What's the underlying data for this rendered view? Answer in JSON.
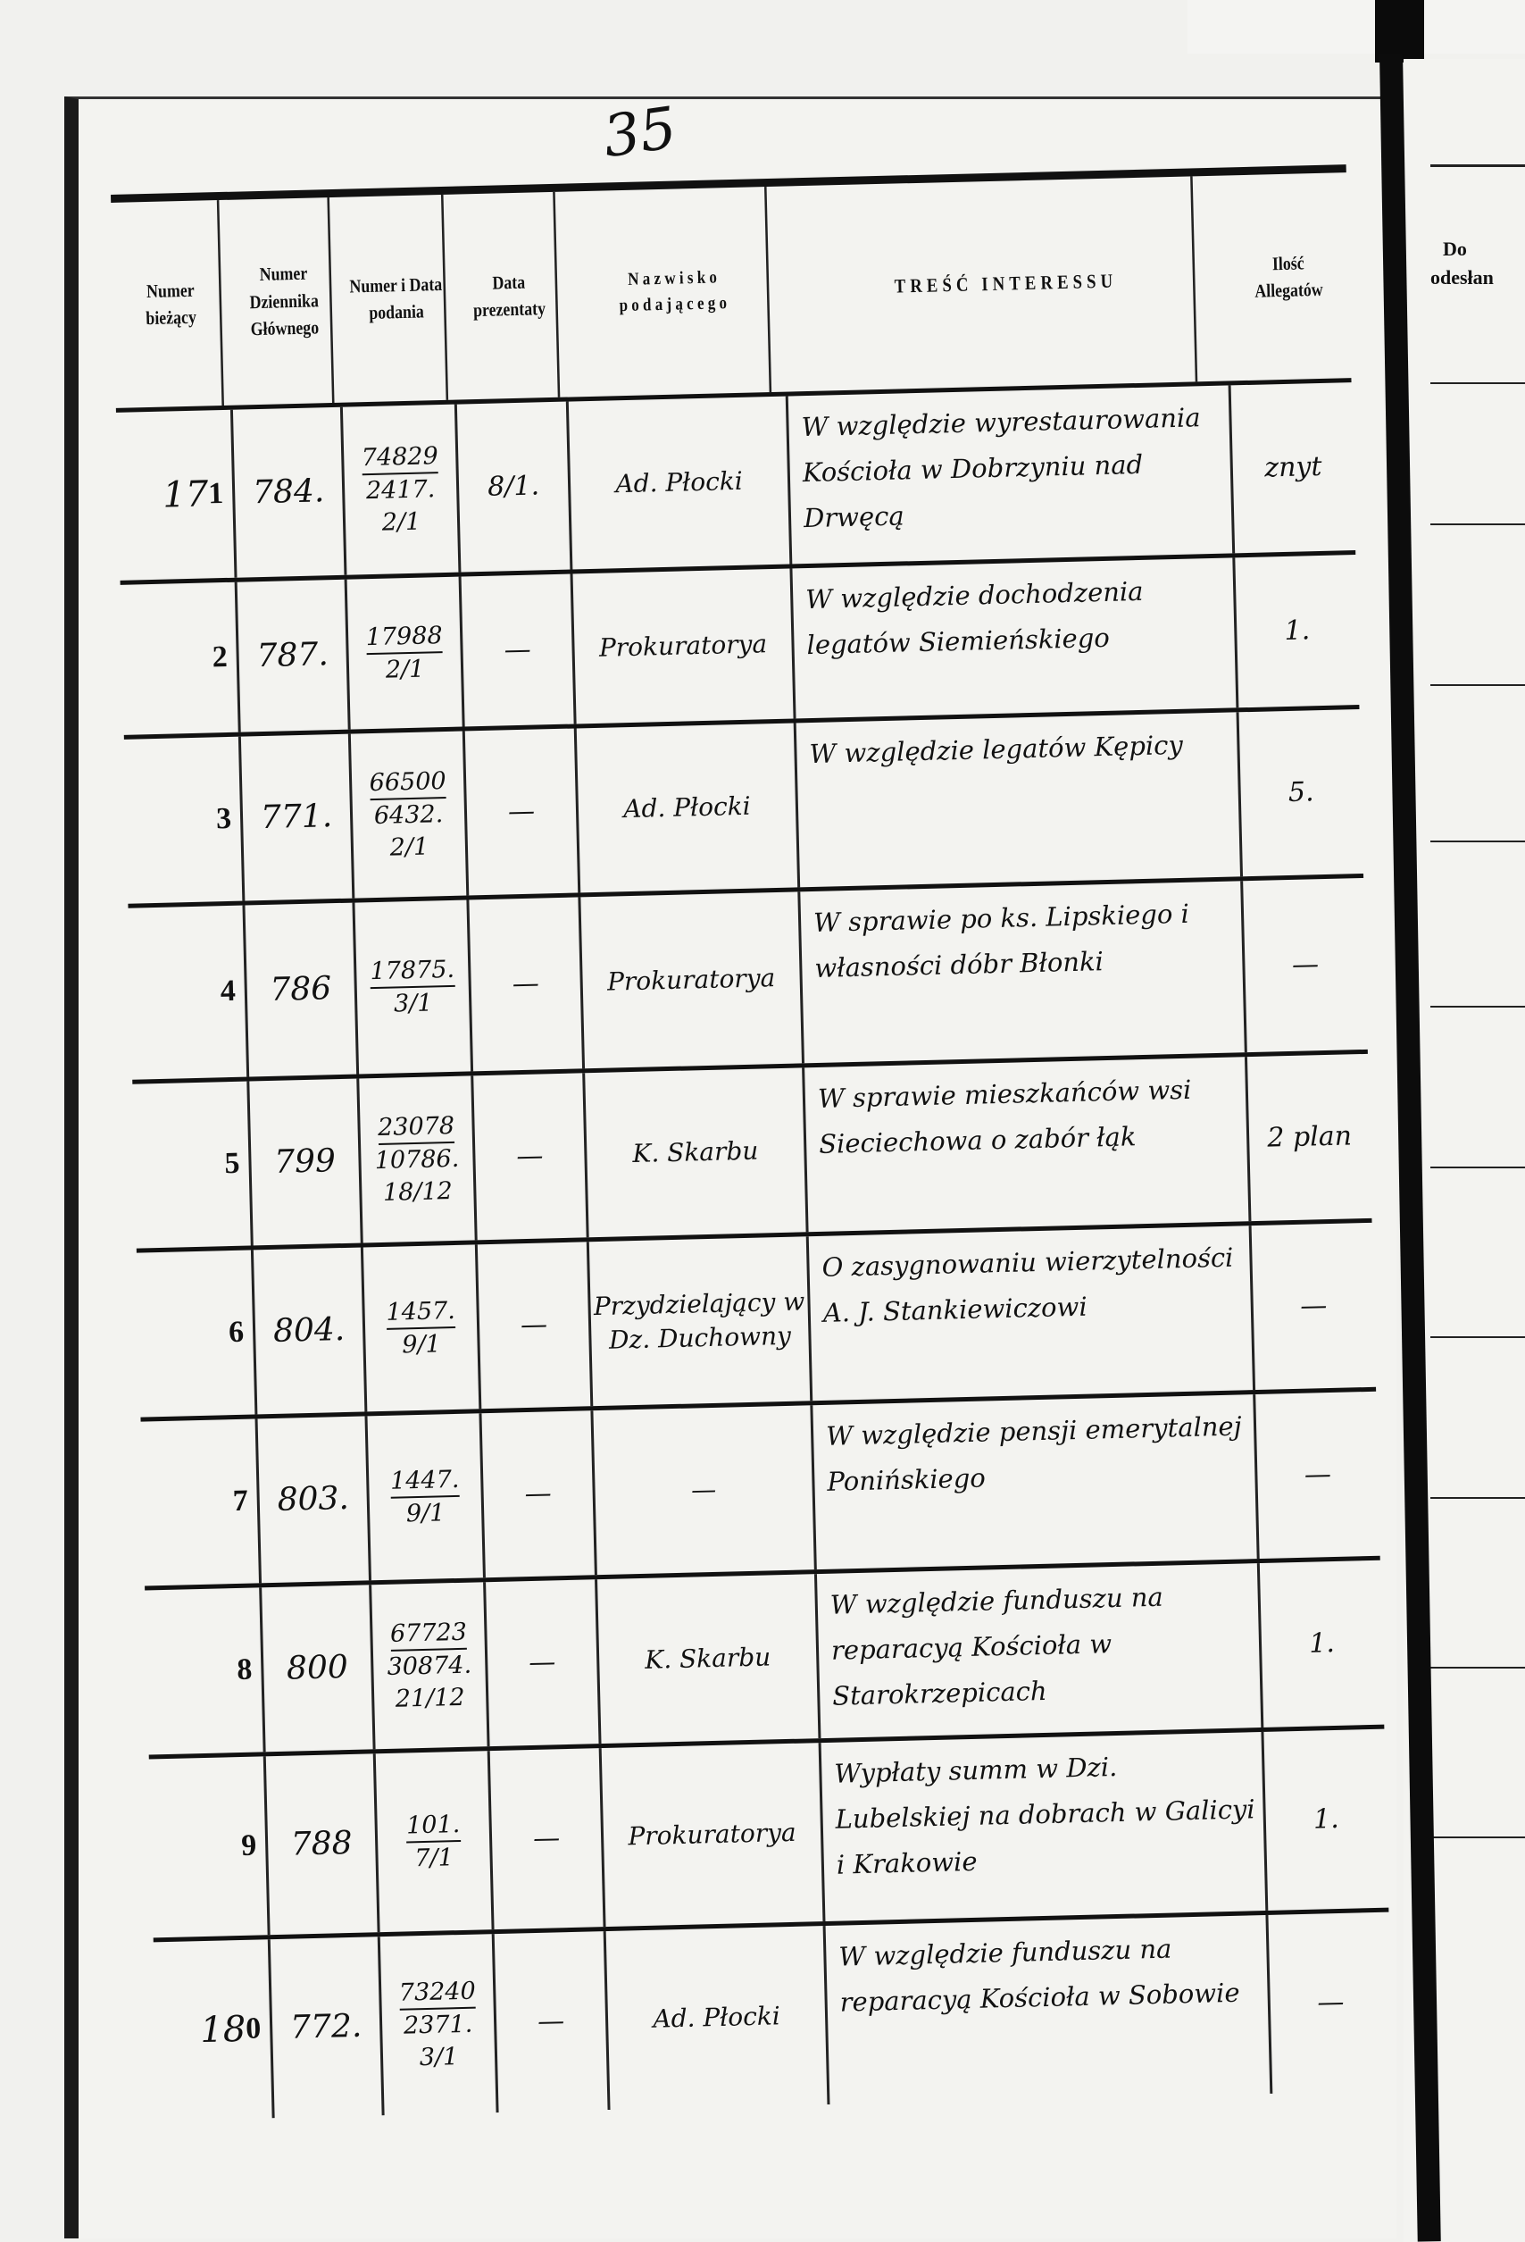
{
  "page_number": "35",
  "headers": {
    "numer_biezacy": "Numer bieżący",
    "numer_dziennika": "Numer Dziennika Głównego",
    "numer_data": "Numer i Data podania",
    "data_prezentaty": "Data prezentaty",
    "nazwisko": "Nazwisko podającego",
    "tresc": "TREŚĆ INTERESSU",
    "ilosc": "Ilość Allegatów"
  },
  "right_page": {
    "header_line1": "Do",
    "header_line2": "odesłan"
  },
  "rows": [
    {
      "prefix": "17",
      "number": "1",
      "journal": "784.",
      "filing": [
        "74829",
        "2417.",
        "2/1"
      ],
      "presented": "8/1.",
      "name": "Ad. Płocki",
      "content": "W względzie wyrestaurowania Kościoła w Dobrzyniu nad Drwęcą",
      "attachments": "znyt"
    },
    {
      "prefix": "",
      "number": "2",
      "journal": "787.",
      "filing": [
        "17988",
        "2/1"
      ],
      "presented": "—",
      "name": "Prokuratorya",
      "content": "W względzie dochodzenia legatów Siemieńskiego",
      "attachments": "1."
    },
    {
      "prefix": "",
      "number": "3",
      "journal": "771.",
      "filing": [
        "66500",
        "6432.",
        "2/1"
      ],
      "presented": "—",
      "name": "Ad. Płocki",
      "content": "W względzie legatów Kępicy",
      "attachments": "5."
    },
    {
      "prefix": "",
      "number": "4",
      "journal": "786",
      "filing": [
        "17875.",
        "3/1"
      ],
      "presented": "—",
      "name": "Prokuratorya",
      "content": "W sprawie po ks. Lipskiego i własności dóbr Błonki",
      "attachments": "—"
    },
    {
      "prefix": "",
      "number": "5",
      "journal": "799",
      "filing": [
        "23078",
        "10786.",
        "18/12"
      ],
      "presented": "—",
      "name": "K. Skarbu",
      "content": "W sprawie mieszkańców wsi Sieciechowa o zabór łąk",
      "attachments": "2 plan"
    },
    {
      "prefix": "",
      "number": "6",
      "journal": "804.",
      "filing": [
        "1457.",
        "9/1"
      ],
      "presented": "—",
      "name": "Przydzielający w Dz. Duchowny",
      "content": "O zasygnowaniu wierzytelności A. J. Stankiewiczowi",
      "attachments": "—"
    },
    {
      "prefix": "",
      "number": "7",
      "journal": "803.",
      "filing": [
        "1447.",
        "9/1"
      ],
      "presented": "—",
      "name": "—",
      "content": "W względzie pensji emerytalnej Ponińskiego",
      "attachments": "—"
    },
    {
      "prefix": "",
      "number": "8",
      "journal": "800",
      "filing": [
        "67723",
        "30874.",
        "21/12"
      ],
      "presented": "—",
      "name": "K. Skarbu",
      "content": "W względzie funduszu na reparacyą Kościoła w Starokrzepicach",
      "attachments": "1."
    },
    {
      "prefix": "",
      "number": "9",
      "journal": "788",
      "filing": [
        "101.",
        "7/1"
      ],
      "presented": "—",
      "name": "Prokuratorya",
      "content": "Wypłaty summ w Dzi. Lubelskiej na dobrach w Galicyi i Krakowie",
      "attachments": "1."
    },
    {
      "prefix": "18",
      "number": "0",
      "journal": "772.",
      "filing": [
        "73240",
        "2371.",
        "3/1"
      ],
      "presented": "—",
      "name": "Ad. Płocki",
      "content": "W względzie funduszu na reparacyą Kościoła w Sobowie",
      "attachments": "—"
    }
  ]
}
